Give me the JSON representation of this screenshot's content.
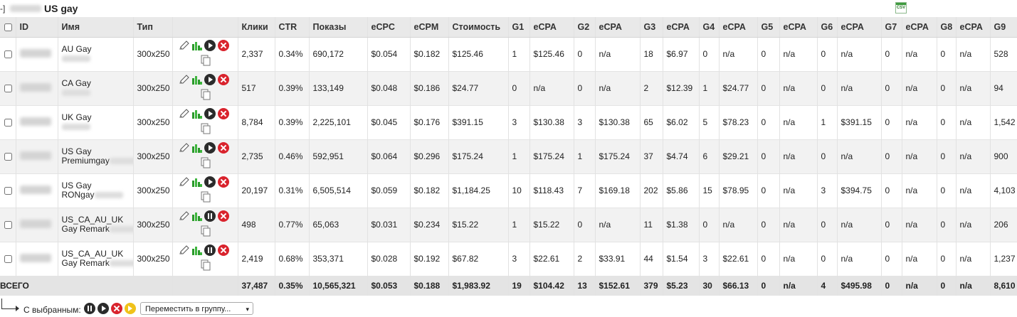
{
  "group": {
    "toggle": "-]",
    "title": "US gay"
  },
  "columns": [
    "ID",
    "Имя",
    "Тип",
    "",
    "Клики",
    "CTR",
    "Показы",
    "eCPC",
    "eCPM",
    "Стоимость",
    "G1",
    "eCPA",
    "G2",
    "eCPA",
    "G3",
    "eCPA",
    "G4",
    "eCPA",
    "G5",
    "eCPA",
    "G6",
    "eCPA",
    "G7",
    "eCPA",
    "G8",
    "eCPA",
    "G9"
  ],
  "rows": [
    {
      "name1": "AU Gay",
      "name2": "",
      "type": "300x250",
      "clicks": "2,337",
      "ctr": "0.34%",
      "impressions": "690,172",
      "ecpc": "$0.054",
      "ecpm": "$0.182",
      "cost": "$125.46",
      "g1": "1",
      "ecpa1": "$125.46",
      "g2": "0",
      "ecpa2": "n/a",
      "g3": "18",
      "ecpa3": "$6.97",
      "g4": "0",
      "ecpa4": "n/a",
      "g5": "0",
      "ecpa5": "n/a",
      "g6": "0",
      "ecpa6": "n/a",
      "g7": "0",
      "ecpa7": "n/a",
      "g8": "0",
      "ecpa8": "n/a",
      "g9": "528",
      "state": "play"
    },
    {
      "name1": "CA Gay",
      "name2": "",
      "type": "300x250",
      "clicks": "517",
      "ctr": "0.39%",
      "impressions": "133,149",
      "ecpc": "$0.048",
      "ecpm": "$0.186",
      "cost": "$24.77",
      "g1": "0",
      "ecpa1": "n/a",
      "g2": "0",
      "ecpa2": "n/a",
      "g3": "2",
      "ecpa3": "$12.39",
      "g4": "1",
      "ecpa4": "$24.77",
      "g5": "0",
      "ecpa5": "n/a",
      "g6": "0",
      "ecpa6": "n/a",
      "g7": "0",
      "ecpa7": "n/a",
      "g8": "0",
      "ecpa8": "n/a",
      "g9": "94",
      "state": "play"
    },
    {
      "name1": "UK Gay",
      "name2": "",
      "type": "300x250",
      "clicks": "8,784",
      "ctr": "0.39%",
      "impressions": "2,225,101",
      "ecpc": "$0.045",
      "ecpm": "$0.176",
      "cost": "$391.15",
      "g1": "3",
      "ecpa1": "$130.38",
      "g2": "3",
      "ecpa2": "$130.38",
      "g3": "65",
      "ecpa3": "$6.02",
      "g4": "5",
      "ecpa4": "$78.23",
      "g5": "0",
      "ecpa5": "n/a",
      "g6": "1",
      "ecpa6": "$391.15",
      "g7": "0",
      "ecpa7": "n/a",
      "g8": "0",
      "ecpa8": "n/a",
      "g9": "1,542",
      "state": "play"
    },
    {
      "name1": "US Gay",
      "name2": "Premiumgay",
      "type": "300x250",
      "clicks": "2,735",
      "ctr": "0.46%",
      "impressions": "592,951",
      "ecpc": "$0.064",
      "ecpm": "$0.296",
      "cost": "$175.24",
      "g1": "1",
      "ecpa1": "$175.24",
      "g2": "1",
      "ecpa2": "$175.24",
      "g3": "37",
      "ecpa3": "$4.74",
      "g4": "6",
      "ecpa4": "$29.21",
      "g5": "0",
      "ecpa5": "n/a",
      "g6": "0",
      "ecpa6": "n/a",
      "g7": "0",
      "ecpa7": "n/a",
      "g8": "0",
      "ecpa8": "n/a",
      "g9": "900",
      "state": "play"
    },
    {
      "name1": "US Gay",
      "name2": "RONgay",
      "type": "300x250",
      "clicks": "20,197",
      "ctr": "0.31%",
      "impressions": "6,505,514",
      "ecpc": "$0.059",
      "ecpm": "$0.182",
      "cost": "$1,184.25",
      "g1": "10",
      "ecpa1": "$118.43",
      "g2": "7",
      "ecpa2": "$169.18",
      "g3": "202",
      "ecpa3": "$5.86",
      "g4": "15",
      "ecpa4": "$78.95",
      "g5": "0",
      "ecpa5": "n/a",
      "g6": "3",
      "ecpa6": "$394.75",
      "g7": "0",
      "ecpa7": "n/a",
      "g8": "0",
      "ecpa8": "n/a",
      "g9": "4,103",
      "state": "play"
    },
    {
      "name1": "US_CA_AU_UK",
      "name2": "Gay Remark",
      "type": "300x250",
      "clicks": "498",
      "ctr": "0.77%",
      "impressions": "65,063",
      "ecpc": "$0.031",
      "ecpm": "$0.234",
      "cost": "$15.22",
      "g1": "1",
      "ecpa1": "$15.22",
      "g2": "0",
      "ecpa2": "n/a",
      "g3": "11",
      "ecpa3": "$1.38",
      "g4": "0",
      "ecpa4": "n/a",
      "g5": "0",
      "ecpa5": "n/a",
      "g6": "0",
      "ecpa6": "n/a",
      "g7": "0",
      "ecpa7": "n/a",
      "g8": "0",
      "ecpa8": "n/a",
      "g9": "206",
      "state": "pause"
    },
    {
      "name1": "US_CA_AU_UK",
      "name2": "Gay Remark",
      "type": "300x250",
      "clicks": "2,419",
      "ctr": "0.68%",
      "impressions": "353,371",
      "ecpc": "$0.028",
      "ecpm": "$0.192",
      "cost": "$67.82",
      "g1": "3",
      "ecpa1": "$22.61",
      "g2": "2",
      "ecpa2": "$33.91",
      "g3": "44",
      "ecpa3": "$1.54",
      "g4": "3",
      "ecpa4": "$22.61",
      "g5": "0",
      "ecpa5": "n/a",
      "g6": "0",
      "ecpa6": "n/a",
      "g7": "0",
      "ecpa7": "n/a",
      "g8": "0",
      "ecpa8": "n/a",
      "g9": "1,237",
      "state": "pause"
    }
  ],
  "totals": {
    "label": "ВСЕГО",
    "clicks": "37,487",
    "ctr": "0.35%",
    "impressions": "10,565,321",
    "ecpc": "$0.053",
    "ecpm": "$0.188",
    "cost": "$1,983.92",
    "g1": "19",
    "ecpa1": "$104.42",
    "g2": "13",
    "ecpa2": "$152.61",
    "g3": "379",
    "ecpa3": "$5.23",
    "g4": "30",
    "ecpa4": "$66.13",
    "g5": "0",
    "ecpa5": "n/a",
    "g6": "4",
    "ecpa6": "$495.98",
    "g7": "0",
    "ecpa7": "n/a",
    "g8": "0",
    "ecpa8": "n/a",
    "g9": "8,610"
  },
  "footer": {
    "selected_label": "С выбранным:",
    "move_placeholder": "Переместить в группу..."
  },
  "icons": {
    "pencil": "pencil-icon",
    "chart": "chart-icon",
    "play": "play-icon",
    "pause": "pause-icon",
    "delete": "delete-icon",
    "copy": "copy-icon",
    "csv": "csv-icon",
    "resume": "resume-icon"
  },
  "colors": {
    "delete": "#d9232d",
    "resume": "#f0c21a",
    "chart": "#2a9a2a"
  }
}
